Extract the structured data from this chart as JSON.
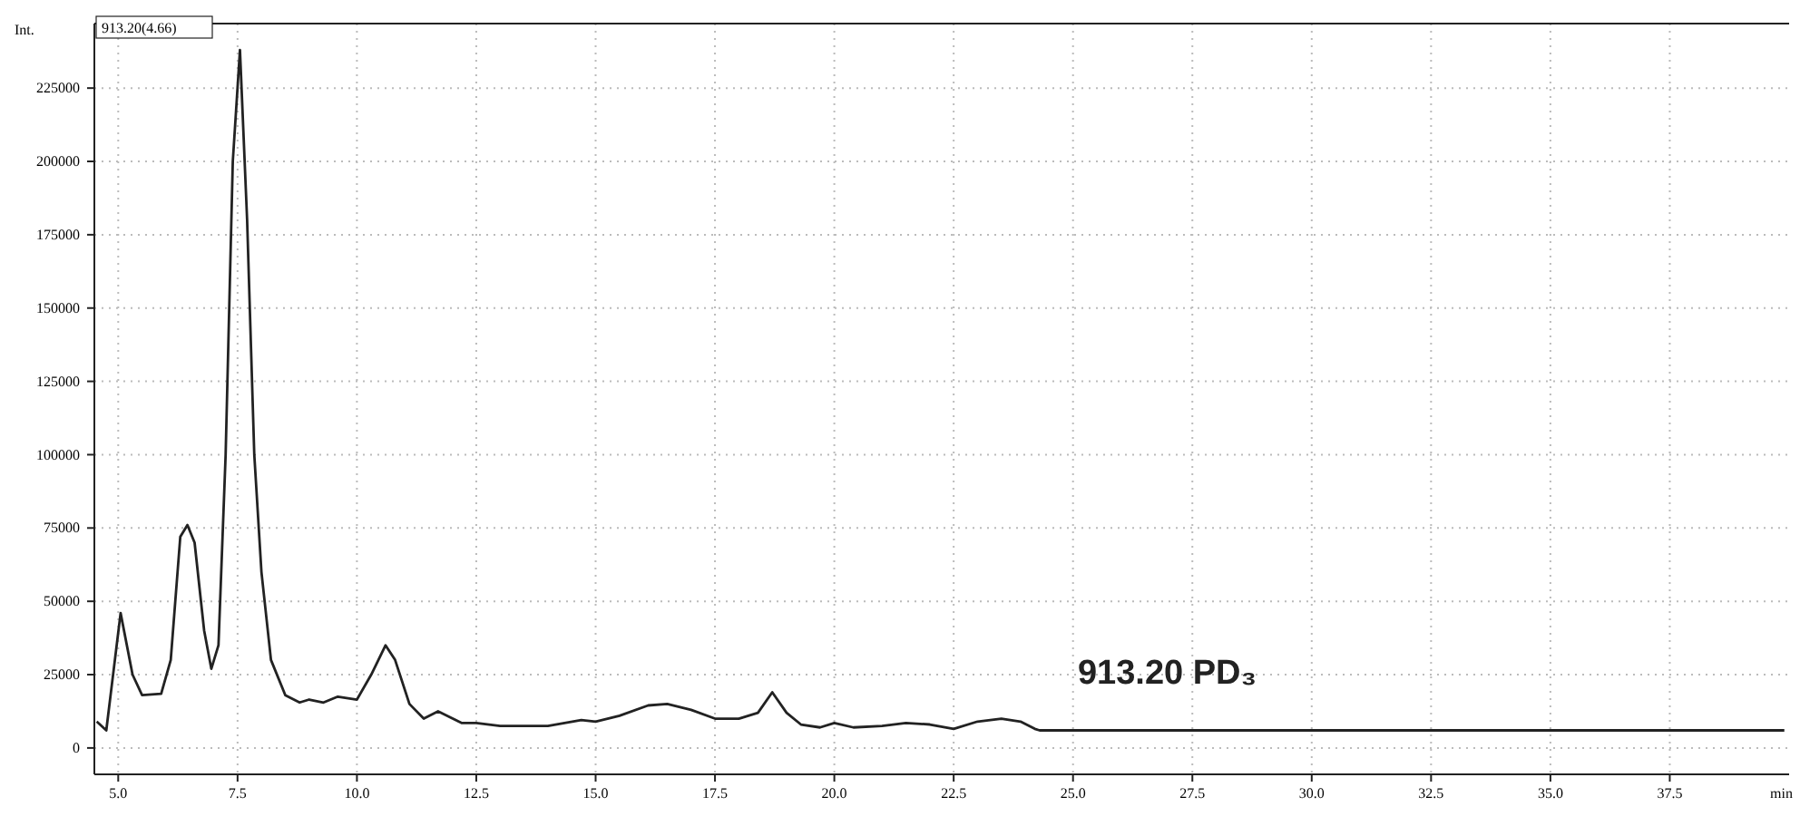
{
  "chart_data": {
    "type": "line",
    "xlabel": "min",
    "ylabel": "Int.",
    "annotations": [
      "913.20(4.66)",
      "913.20 PD₃"
    ],
    "x": [
      4.55,
      4.75,
      5.05,
      5.3,
      5.5,
      5.9,
      6.1,
      6.3,
      6.45,
      6.6,
      6.8,
      6.95,
      7.1,
      7.25,
      7.4,
      7.55,
      7.7,
      7.85,
      8.0,
      8.2,
      8.5,
      8.8,
      9.0,
      9.3,
      9.6,
      10.0,
      10.3,
      10.6,
      10.8,
      11.1,
      11.4,
      11.7,
      12.2,
      12.5,
      13.0,
      14.0,
      14.7,
      15.0,
      15.5,
      16.1,
      16.5,
      17.0,
      17.5,
      18.0,
      18.4,
      18.7,
      19.0,
      19.3,
      19.7,
      20.0,
      20.4,
      21.0,
      21.5,
      22.0,
      22.5,
      23.0,
      23.5,
      23.9,
      24.2,
      24.3,
      30.0,
      39.9
    ],
    "series": [
      {
        "color": "#222222",
        "values": [
          9000,
          6000,
          46000,
          25000,
          18000,
          18500,
          30000,
          72000,
          76000,
          70000,
          40000,
          27000,
          35000,
          100000,
          200000,
          238000,
          180000,
          100000,
          60000,
          30000,
          18000,
          15500,
          16500,
          15500,
          17500,
          16500,
          25000,
          35000,
          30000,
          15000,
          10000,
          12500,
          8500,
          8500,
          7500,
          7500,
          9500,
          9000,
          11000,
          14500,
          15000,
          13000,
          10000,
          10000,
          12000,
          19000,
          12000,
          8000,
          7000,
          8500,
          7000,
          7500,
          8500,
          8000,
          6500,
          9000,
          10000,
          9000,
          6500,
          6000,
          6000,
          6000
        ]
      }
    ],
    "xlim": [
      4.5,
      40
    ],
    "ylim": [
      -9000,
      247000
    ],
    "xticks": [
      {
        "value": 5,
        "label": "5.0"
      },
      {
        "value": 7.5,
        "label": "7.5"
      },
      {
        "value": 10,
        "label": "10.0"
      },
      {
        "value": 12.5,
        "label": "12.5"
      },
      {
        "value": 15,
        "label": "15.0"
      },
      {
        "value": 17.5,
        "label": "17.5"
      },
      {
        "value": 20,
        "label": "20.0"
      },
      {
        "value": 22.5,
        "label": "22.5"
      },
      {
        "value": 25,
        "label": "25.0"
      },
      {
        "value": 27.5,
        "label": "27.5"
      },
      {
        "value": 30,
        "label": "30.0"
      },
      {
        "value": 32.5,
        "label": "32.5"
      },
      {
        "value": 35,
        "label": "35.0"
      },
      {
        "value": 37.5,
        "label": "37.5"
      }
    ],
    "yticks": [
      0,
      25000,
      50000,
      75000,
      100000,
      125000,
      150000,
      175000,
      200000,
      225000
    ],
    "grid": true,
    "marker": "none",
    "line_style": "solid"
  }
}
